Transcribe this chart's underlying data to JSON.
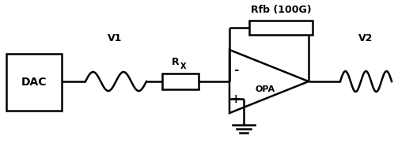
{
  "bg_color": "#ffffff",
  "line_color": "#000000",
  "lw": 1.8,
  "fig_w": 5.03,
  "fig_h": 1.91,
  "dpi": 100,
  "dac_label": "DAC",
  "rfb_label": "Rfb (100G)",
  "rx_label": "R",
  "rx_sub": "X",
  "v1_label": "V1",
  "v2_label": "V2",
  "opa_label": "OPA",
  "minus_label": "-",
  "plus_label": "+"
}
